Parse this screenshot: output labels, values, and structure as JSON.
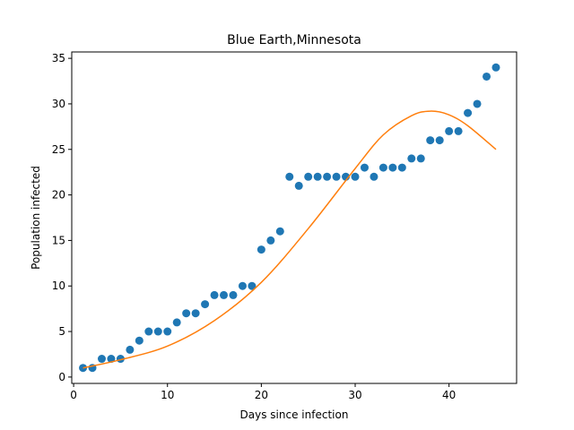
{
  "chart_data": {
    "type": "scatter",
    "title": "Blue Earth,Minnesota",
    "xlabel": "Days since infection",
    "ylabel": "Population infected",
    "xlim": [
      -0.2,
      47.2
    ],
    "ylim": [
      -0.7,
      35.7
    ],
    "xticks": [
      0,
      10,
      20,
      30,
      40
    ],
    "yticks": [
      0,
      5,
      10,
      15,
      20,
      25,
      30,
      35
    ],
    "grid": false,
    "series": [
      {
        "kind": "scatter",
        "color": "#1f77b4",
        "x": [
          1,
          2,
          3,
          4,
          5,
          6,
          7,
          8,
          9,
          10,
          11,
          12,
          13,
          14,
          15,
          16,
          17,
          18,
          19,
          20,
          21,
          22,
          23,
          24,
          25,
          26,
          27,
          28,
          29,
          30,
          31,
          32,
          33,
          34,
          35,
          36,
          37,
          38,
          39,
          40,
          41,
          42,
          43,
          44,
          45
        ],
        "y": [
          1,
          1,
          2,
          2,
          2,
          3,
          4,
          5,
          5,
          5,
          6,
          7,
          7,
          8,
          9,
          9,
          9,
          10,
          10,
          14,
          15,
          16,
          22,
          21,
          22,
          22,
          22,
          22,
          22,
          22,
          23,
          22,
          23,
          23,
          23,
          24,
          24,
          26,
          26,
          27,
          27,
          29,
          30,
          33,
          34
        ]
      },
      {
        "kind": "line",
        "color": "#ff7f0e",
        "x": [
          1,
          5,
          10,
          15,
          20,
          25,
          30,
          33,
          36,
          38,
          40,
          42,
          45
        ],
        "y": [
          1.0,
          1.9,
          3.4,
          6.2,
          10.4,
          16.3,
          22.9,
          26.6,
          28.7,
          29.2,
          28.8,
          27.6,
          25.0
        ]
      }
    ]
  }
}
